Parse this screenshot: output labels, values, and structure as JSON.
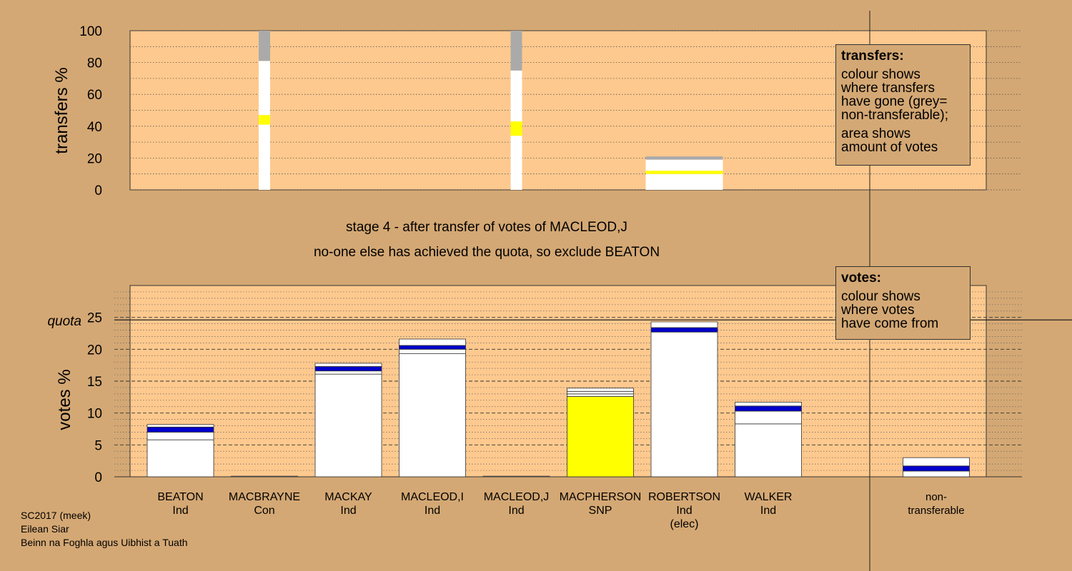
{
  "stage_title": "stage 4 - after transfer of votes of MACLEOD,J",
  "stage_subtitle": "no-one else has achieved the quota, so exclude BEATON",
  "legend_transfers": {
    "title": "transfers:",
    "line1": "colour shows\nwhere transfers\nhave gone (grey=\nnon-transferable);",
    "line2": "area shows\namount of votes"
  },
  "legend_votes": {
    "title": "votes:",
    "line1": "colour shows\nwhere votes\nhave come from"
  },
  "footer": {
    "line1": "SC2017 (meek)",
    "line2": "Eilean Siar",
    "line3": "Beinn na Foghla agus Uibhist a Tuath"
  },
  "colors": {
    "background": "#d4a874",
    "plot_background": "#fec98e",
    "grey": "#aaaaaa",
    "yellow": "#ffff00",
    "blue": "#0000cc",
    "white": "#ffffff"
  },
  "chart_data": [
    {
      "type": "bar",
      "ylabel": "transfers %",
      "ylim": [
        0,
        100
      ],
      "yticks": [
        0,
        20,
        40,
        60,
        80,
        100
      ],
      "columns": [
        {
          "index": 1,
          "transfer_share": 1.0,
          "segments": [
            {
              "color": "white",
              "from": 0,
              "to": 41
            },
            {
              "color": "yellow",
              "from": 41,
              "to": 47
            },
            {
              "color": "white",
              "from": 47,
              "to": 81
            },
            {
              "color": "grey",
              "from": 81,
              "to": 100
            }
          ]
        },
        {
          "index": 4,
          "transfer_share": 1.0,
          "segments": [
            {
              "color": "white",
              "from": 0,
              "to": 34
            },
            {
              "color": "yellow",
              "from": 34,
              "to": 43
            },
            {
              "color": "white",
              "from": 43,
              "to": 75
            },
            {
              "color": "grey",
              "from": 75,
              "to": 100
            }
          ]
        },
        {
          "index": 6,
          "transfer_share": 0.92,
          "segments": [
            {
              "color": "white",
              "from": 0,
              "to": 10
            },
            {
              "color": "yellow",
              "from": 10,
              "to": 12
            },
            {
              "color": "white",
              "from": 12,
              "to": 19
            },
            {
              "color": "grey",
              "from": 19,
              "to": 21
            }
          ]
        }
      ]
    },
    {
      "type": "bar",
      "ylabel": "votes %",
      "ylim": [
        0,
        30
      ],
      "yticks": [
        0,
        5,
        10,
        15,
        20,
        25
      ],
      "quota": 24.6,
      "quota_label": "quota",
      "categories": [
        {
          "name": "BEATON",
          "party": "Ind",
          "note": ""
        },
        {
          "name": "MACBRAYNE",
          "party": "Con",
          "note": ""
        },
        {
          "name": "MACKAY",
          "party": "Ind",
          "note": ""
        },
        {
          "name": "MACLEOD,I",
          "party": "Ind",
          "note": ""
        },
        {
          "name": "MACLEOD,J",
          "party": "Ind",
          "note": ""
        },
        {
          "name": "MACPHERSON",
          "party": "SNP",
          "note": ""
        },
        {
          "name": "ROBERTSON",
          "party": "Ind",
          "note": "(elec)"
        },
        {
          "name": "WALKER",
          "party": "Ind",
          "note": ""
        },
        {
          "name": "non-\ntransferable",
          "party": "",
          "note": ""
        }
      ],
      "stacks": [
        [
          {
            "color": "white",
            "v": 5.8
          },
          {
            "color": "white",
            "v": 1.2
          },
          {
            "color": "blue",
            "v": 0.8
          },
          {
            "color": "white",
            "v": 0.4
          }
        ],
        [
          {
            "color": "white",
            "v": 0.1
          }
        ],
        [
          {
            "color": "white",
            "v": 16.1
          },
          {
            "color": "white",
            "v": 0.5
          },
          {
            "color": "blue",
            "v": 0.7
          },
          {
            "color": "white",
            "v": 0.5
          }
        ],
        [
          {
            "color": "white",
            "v": 19.3
          },
          {
            "color": "white",
            "v": 0.7
          },
          {
            "color": "blue",
            "v": 0.6
          },
          {
            "color": "white",
            "v": 1.0
          }
        ],
        [
          {
            "color": "white",
            "v": 0.1
          }
        ],
        [
          {
            "color": "yellow",
            "v": 12.6
          },
          {
            "color": "white",
            "v": 0.4
          },
          {
            "color": "white",
            "v": 0.4
          },
          {
            "color": "white",
            "v": 0.5
          }
        ],
        [
          {
            "color": "white",
            "v": 22.7
          },
          {
            "color": "blue",
            "v": 0.7
          },
          {
            "color": "white",
            "v": 0.9
          }
        ],
        [
          {
            "color": "white",
            "v": 8.3
          },
          {
            "color": "white",
            "v": 2.0
          },
          {
            "color": "blue",
            "v": 0.8
          },
          {
            "color": "white",
            "v": 0.6
          }
        ],
        [
          {
            "color": "white",
            "v": 0.9
          },
          {
            "color": "blue",
            "v": 0.8
          },
          {
            "color": "white",
            "v": 1.3
          }
        ]
      ]
    }
  ]
}
